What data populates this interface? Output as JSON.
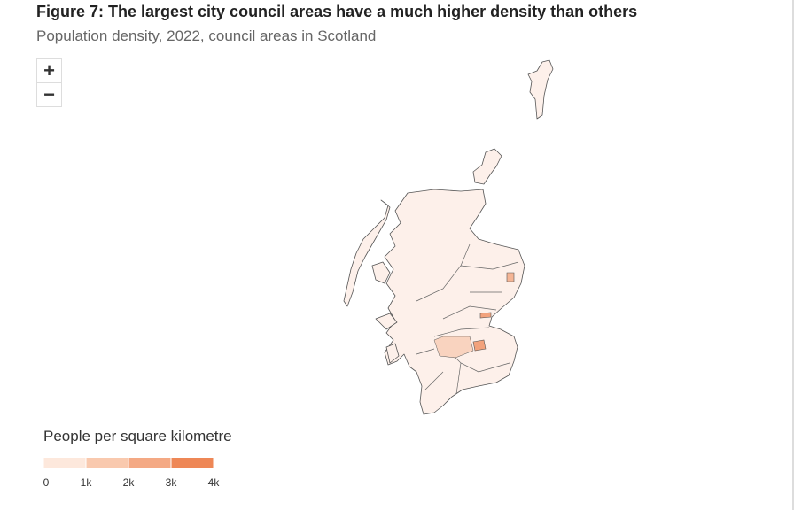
{
  "header": {
    "title": "Figure 7: The largest city council areas have a much higher density than others",
    "subtitle": "Population density, 2022, council areas in Scotland"
  },
  "zoom": {
    "in": "+",
    "out": "−"
  },
  "legend": {
    "title": "People per square kilometre",
    "ticks": [
      0,
      {
        "value": 1000,
        "label": "1k"
      },
      {
        "value": 2000,
        "label": "2k"
      },
      {
        "value": 3000,
        "label": "3k"
      },
      {
        "value": 4000,
        "label": "4k"
      }
    ],
    "colors": [
      "#fde8dc",
      "#f9c9ae",
      "#f4a984",
      "#ee8756"
    ]
  }
}
